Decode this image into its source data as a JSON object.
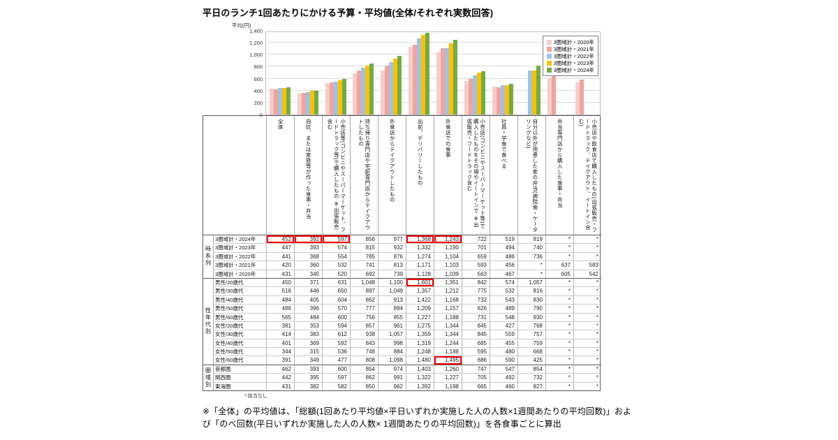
{
  "title": "平日のランチ1回あたりにかける予算・平均値(全体/それぞれ実数回答)",
  "colors": {
    "highlight": "#ff0000"
  },
  "chart_data": {
    "type": "bar",
    "title": "平日のランチ1回あたりにかける予算・平均値(全体/それぞれ実数回答)",
    "ylabel": "平均(円)",
    "ylim": [
      0,
      1400
    ],
    "yticks": [
      0,
      200,
      400,
      600,
      800,
      1000,
      1200,
      1400
    ],
    "ytick_labels": [
      "0",
      "200",
      "400",
      "600",
      "800",
      "1,000",
      "1,200",
      "1,400"
    ],
    "grid": true,
    "legend_position": "top-right",
    "categories": [
      "全体",
      "自炊、または家族等が作った食事・弁当",
      "小売店等(コンビニやスーパーマーケット、フードトラック等)で購入したもの ※出張販売含む",
      "持ち帰り専門店や宅配専門店からテイクアウトしたもの",
      "外食店からテイクアウトしたもの",
      "出前、デリバリーしたもの",
      "外食店での食事",
      "小売店(コンビニやスーパーマーケット等)で購入したものをその場やイートインで ※出張販売・フードトラック含む",
      "社員・学食で食べる",
      "自分以外が用意した家の弁当(病院食・ケータリングなど)",
      "弁当専門店から購入した食事・弁当",
      "小売店や飲食店で購入したもの(出張販売・フードトラック、テイクアウト、イートイン含む)"
    ],
    "series": [
      {
        "name": "3圏域計・2020年",
        "color": "#f6cdc9",
        "values": [
          431,
          345,
          520,
          692,
          739,
          1128,
          1039,
          563,
          467,
          null,
          605,
          542
        ]
      },
      {
        "name": "3圏域計・2021年",
        "color": "#f0a49e",
        "values": [
          420,
          360,
          532,
          741,
          813,
          1171,
          1103,
          593,
          456,
          null,
          637,
          583
        ]
      },
      {
        "name": "3圏域計・2022年",
        "color": "#9dc3e6",
        "values": [
          441,
          368,
          554,
          785,
          876,
          1274,
          1104,
          659,
          486,
          736,
          null,
          null
        ]
      },
      {
        "name": "3圏域計・2023年",
        "color": "#ffc000",
        "values": [
          447,
          393,
          574,
          815,
          932,
          1332,
          1190,
          701,
          494,
          740,
          null,
          null
        ]
      },
      {
        "name": "3圏域計・2024年",
        "color": "#70ad47",
        "values": [
          452,
          392,
          597,
          856,
          977,
          1368,
          1243,
          722,
          519,
          819,
          null,
          null
        ]
      }
    ]
  },
  "table": {
    "note": "*:該当なし",
    "row_groups": [
      {
        "label": "時系列",
        "rows": [
          {
            "label": "3圏域計・2024年",
            "values": [
              "452",
              "392",
              "597",
              "856",
              "977",
              "1,368",
              "1,243",
              "722",
              "519",
              "819",
              "*",
              "*"
            ],
            "highlights": [
              0,
              1,
              2,
              5,
              6
            ]
          },
          {
            "label": "3圏域計・2023年",
            "values": [
              "447",
              "393",
              "574",
              "815",
              "932",
              "1,332",
              "1,190",
              "701",
              "494",
              "740",
              "*",
              "*"
            ],
            "highlights": []
          },
          {
            "label": "3圏域計・2022年",
            "values": [
              "441",
              "368",
              "554",
              "785",
              "876",
              "1,274",
              "1,104",
              "659",
              "486",
              "736",
              "*",
              "*"
            ],
            "highlights": []
          },
          {
            "label": "3圏域計・2021年",
            "values": [
              "420",
              "360",
              "532",
              "741",
              "813",
              "1,171",
              "1,103",
              "593",
              "456",
              "*",
              "637",
              "583"
            ],
            "highlights": []
          },
          {
            "label": "3圏域計・2020年",
            "values": [
              "431",
              "345",
              "520",
              "692",
              "739",
              "1,128",
              "1,039",
              "563",
              "467",
              "*",
              "605",
              "542"
            ],
            "highlights": []
          }
        ]
      },
      {
        "label": "性年代別",
        "rows": [
          {
            "label": "男性/20歳代",
            "values": [
              "450",
              "371",
              "631",
              "1,048",
              "1,100",
              "1,601",
              "1,351",
              "842",
              "574",
              "1,057",
              "*",
              "*"
            ],
            "highlights": [
              5
            ]
          },
          {
            "label": "男性/30歳代",
            "values": [
              "516",
              "446",
              "650",
              "897",
              "1,049",
              "1,357",
              "1,212",
              "775",
              "532",
              "816",
              "*",
              "*"
            ],
            "highlights": []
          },
          {
            "label": "男性/40歳代",
            "values": [
              "484",
              "405",
              "604",
              "862",
              "913",
              "1,422",
              "1,168",
              "732",
              "543",
              "830",
              "*",
              "*"
            ],
            "highlights": []
          },
          {
            "label": "男性/50歳代",
            "values": [
              "486",
              "396",
              "570",
              "777",
              "894",
              "1,209",
              "1,157",
              "626",
              "489",
              "790",
              "*",
              "*"
            ],
            "highlights": []
          },
          {
            "label": "男性/60歳代",
            "values": [
              "565",
              "484",
              "600",
              "756",
              "855",
              "1,227",
              "1,188",
              "731",
              "548",
              "930",
              "*",
              "*"
            ],
            "highlights": []
          },
          {
            "label": "女性/20歳代",
            "values": [
              "381",
              "353",
              "594",
              "857",
              "961",
              "1,275",
              "1,344",
              "645",
              "427",
              "768",
              "*",
              "*"
            ],
            "highlights": []
          },
          {
            "label": "女性/30歳代",
            "values": [
              "414",
              "383",
              "612",
              "938",
              "1,057",
              "1,359",
              "1,344",
              "845",
              "559",
              "757",
              "*",
              "*"
            ],
            "highlights": []
          },
          {
            "label": "女性/40歳代",
            "values": [
              "401",
              "369",
              "592",
              "843",
              "998",
              "1,319",
              "1,244",
              "685",
              "455",
              "759",
              "*",
              "*"
            ],
            "highlights": []
          },
          {
            "label": "女性/50歳代",
            "values": [
              "344",
              "315",
              "536",
              "748",
              "884",
              "1,248",
              "1,188",
              "595",
              "480",
              "668",
              "*",
              "*"
            ],
            "highlights": []
          },
          {
            "label": "女性/60歳代",
            "values": [
              "391",
              "349",
              "477",
              "808",
              "1,098",
              "1,480",
              "1,495",
              "686",
              "590",
              "425",
              "*",
              "*"
            ],
            "highlights": [
              6
            ]
          }
        ]
      },
      {
        "label": "圏域別",
        "rows": [
          {
            "label": "首都圏",
            "values": [
              "462",
              "393",
              "600",
              "854",
              "974",
              "1,403",
              "1,260",
              "747",
              "547",
              "854",
              "*",
              "*"
            ],
            "highlights": []
          },
          {
            "label": "関西圏",
            "values": [
              "442",
              "395",
              "597",
              "862",
              "991",
              "1,322",
              "1,227",
              "705",
              "492",
              "732",
              "*",
              "*"
            ],
            "highlights": []
          },
          {
            "label": "東海圏",
            "values": [
              "431",
              "382",
              "582",
              "850",
              "962",
              "1,392",
              "1,198",
              "665",
              "460",
              "827",
              "*",
              "*"
            ],
            "highlights": []
          }
        ]
      }
    ]
  },
  "footnote": "※「全体」の平均値は、「総額(1回あたり平均値×平日いずれか実施した人の人数×1週間あたりの平均回数)」および「のべ回数(平日いずれか実施した人の人数× 1週間あたりの平均回数)」を各食事ごとに算出"
}
